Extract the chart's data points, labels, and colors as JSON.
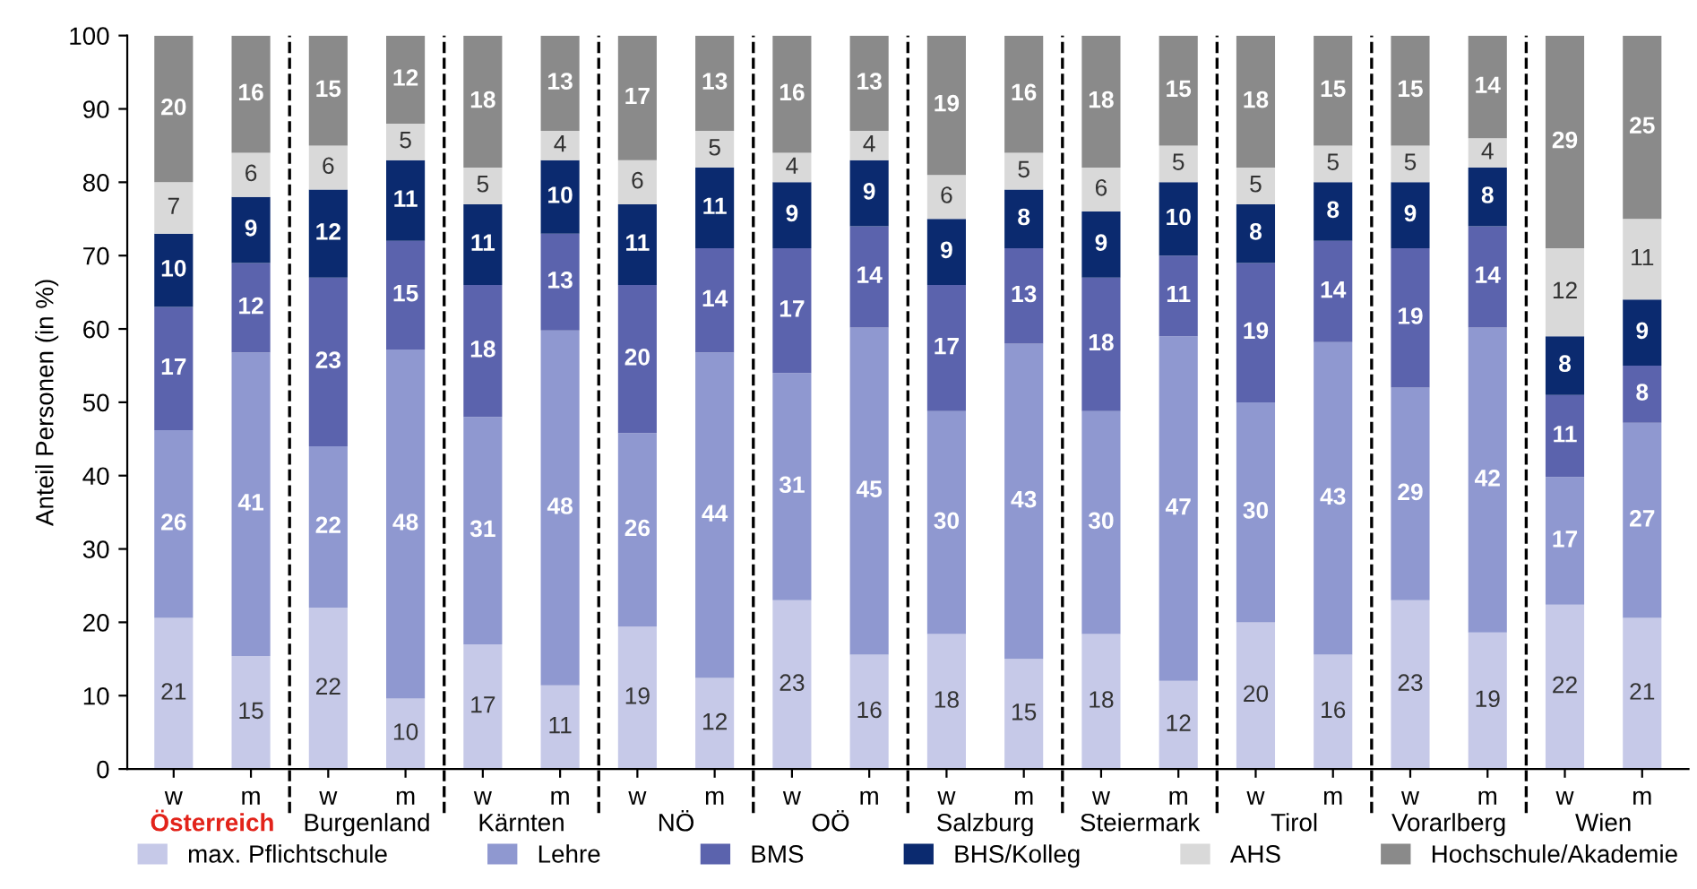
{
  "chart_data": {
    "type": "bar",
    "stacked": true,
    "ylabel": "Anteil Personen (in %)",
    "categories": [
      "w",
      "m",
      "w",
      "m",
      "w",
      "m",
      "w",
      "m",
      "w",
      "m",
      "w",
      "m",
      "w",
      "m",
      "w",
      "m",
      "w",
      "m",
      "w",
      "m"
    ],
    "annotations": [
      "Österreich",
      "Burgenland",
      "Kärnten",
      "NÖ",
      "OÖ",
      "Salzburg",
      "Steiermark",
      "Tirol",
      "Vorarlberg",
      "Wien"
    ],
    "ylim": [
      0,
      100
    ],
    "yticks": [
      0,
      10,
      20,
      30,
      40,
      50,
      60,
      70,
      80,
      90,
      100
    ],
    "grid": false,
    "legend": "bottom",
    "series": [
      {
        "name": "max. Pflichtschule",
        "color": "#c6c9e8",
        "values": [
          20.6,
          15.4,
          22,
          9.6,
          17,
          11.4,
          19.4,
          12.4,
          23,
          15.6,
          18.4,
          15,
          18.4,
          12,
          20,
          15.6,
          23,
          18.6,
          22.4,
          20.6
        ],
        "value_labels": [
          "21",
          "15",
          "22",
          "10",
          "17",
          "11",
          "19",
          "12",
          "23",
          "16",
          "18",
          "15",
          "18",
          "12",
          "20",
          "16",
          "23",
          "19",
          "22",
          "21"
        ]
      },
      {
        "name": "Lehre",
        "color": "#8f98d0",
        "values": [
          25.6,
          41.4,
          22,
          47.6,
          31,
          48.4,
          26.4,
          44.4,
          31,
          44.6,
          30.4,
          43,
          30.4,
          47,
          30,
          42.6,
          29,
          41.6,
          17.4,
          26.6
        ],
        "value_labels": [
          "26",
          "41",
          "22",
          "48",
          "31",
          "48",
          "26",
          "44",
          "31",
          "45",
          "30",
          "43",
          "30",
          "47",
          "30",
          "43",
          "29",
          "42",
          "17",
          "27"
        ]
      },
      {
        "name": "BMS",
        "color": "#5b63ad",
        "values": [
          16.8,
          12.2,
          23,
          14.8,
          18,
          13.2,
          20.2,
          14.2,
          17,
          13.8,
          17.2,
          13,
          18.2,
          11,
          19,
          13.8,
          19,
          13.8,
          11.2,
          7.8
        ],
        "value_labels": [
          "17",
          "12",
          "23",
          "15",
          "18",
          "13",
          "20",
          "14",
          "17",
          "14",
          "17",
          "13",
          "18",
          "11",
          "19",
          "14",
          "19",
          "14",
          "11",
          "8"
        ]
      },
      {
        "name": "BHS/Kolleg",
        "color": "#0b2a6f",
        "values": [
          10,
          9,
          12,
          11,
          11,
          10,
          11,
          11,
          9,
          9,
          9,
          8,
          9,
          10,
          8,
          8,
          9,
          8,
          8,
          9
        ],
        "value_labels": [
          "10",
          "9",
          "12",
          "11",
          "11",
          "10",
          "11",
          "11",
          "9",
          "9",
          "9",
          "8",
          "9",
          "10",
          "8",
          "8",
          "9",
          "8",
          "8",
          "9"
        ]
      },
      {
        "name": "AHS",
        "color": "#d9d9d9",
        "values": [
          7,
          6,
          6,
          5,
          5,
          4,
          6,
          5,
          4,
          4,
          6,
          5,
          6,
          5,
          5,
          5,
          5,
          4,
          12,
          11
        ],
        "value_labels": [
          "7",
          "6",
          "6",
          "5",
          "5",
          "4",
          "6",
          "5",
          "4",
          "4",
          "6",
          "5",
          "6",
          "5",
          "5",
          "5",
          "5",
          "4",
          "12",
          "11"
        ]
      },
      {
        "name": "Hochschule/Akademie",
        "color": "#8a8a8a",
        "values": [
          20,
          16,
          15,
          12,
          18,
          13,
          17,
          13,
          16,
          13,
          19,
          16,
          18,
          15,
          18,
          15,
          15,
          14,
          29,
          25
        ],
        "value_labels": [
          "20",
          "16",
          "15",
          "12",
          "18",
          "13",
          "17",
          "13",
          "16",
          "13",
          "19",
          "16",
          "18",
          "15",
          "18",
          "15",
          "15",
          "14",
          "29",
          "25"
        ]
      }
    ]
  }
}
